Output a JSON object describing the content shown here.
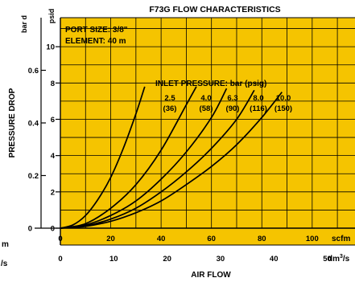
{
  "colors": {
    "plot_background": "#f5c400",
    "page_background": "#ffffff",
    "ink": "#000000"
  },
  "chart_data": {
    "type": "line",
    "title": "F73G FLOW CHARACTERISTICS",
    "notes": [
      "PORT SIZE: 3/8\"",
      "ELEMENT: 40 m"
    ],
    "legend_title": "INLET PRESSURE: bar (psig)",
    "ylabel": "PRESSURE DROP",
    "xlabel": "AIR FLOW",
    "grid": true,
    "y_axes": [
      {
        "unit": "psid",
        "range": [
          0,
          11.6
        ],
        "ticks": [
          0,
          2,
          4,
          6,
          8,
          10
        ]
      },
      {
        "unit": "bar d",
        "range": [
          0,
          0.8
        ],
        "ticks": [
          0.2,
          0.4,
          0.6
        ]
      }
    ],
    "x_axes": [
      {
        "unit": "scfm",
        "range": [
          0,
          117
        ],
        "ticks": [
          0,
          20,
          40,
          60,
          80,
          100
        ]
      },
      {
        "unit": "dm3/s",
        "range": [
          0,
          55.2
        ],
        "ticks": [
          0,
          10,
          20,
          30,
          40,
          50
        ]
      }
    ],
    "series": [
      {
        "name": "2.5 (36)",
        "pressure_bar": "2.5",
        "pressure_psig": "(36)",
        "x": [
          0,
          5,
          10,
          15,
          20,
          25,
          30,
          33.5
        ],
        "y": [
          0,
          0.18,
          0.7,
          1.6,
          2.8,
          4.4,
          6.3,
          7.8
        ]
      },
      {
        "name": "4.0 (58)",
        "pressure_bar": "4.0",
        "pressure_psig": "(58)",
        "x": [
          0,
          10,
          20,
          30,
          40,
          50,
          54
        ],
        "y": [
          0,
          0.25,
          1.1,
          2.4,
          4.3,
          6.8,
          7.8
        ]
      },
      {
        "name": "6.3 (90)",
        "pressure_bar": "6.3",
        "pressure_psig": "(90)",
        "x": [
          0,
          10,
          20,
          30,
          40,
          50,
          60,
          66
        ],
        "y": [
          0,
          0.18,
          0.7,
          1.5,
          2.7,
          4.2,
          6.1,
          7.7
        ]
      },
      {
        "name": "8.0 (116)",
        "pressure_bar": "8.0",
        "pressure_psig": "(116)",
        "x": [
          0,
          10,
          20,
          30,
          40,
          50,
          60,
          70,
          77
        ],
        "y": [
          0,
          0.13,
          0.5,
          1.1,
          2.0,
          3.1,
          4.4,
          6.0,
          7.6
        ]
      },
      {
        "name": "10.0 (150)",
        "pressure_bar": "10.0",
        "pressure_psig": "(150)",
        "x": [
          0,
          10,
          20,
          30,
          40,
          50,
          60,
          70,
          80,
          88
        ],
        "y": [
          0,
          0.1,
          0.38,
          0.85,
          1.5,
          2.4,
          3.4,
          4.6,
          6.1,
          7.5
        ]
      }
    ]
  },
  "edge_fragments": {
    "left_unit_1": "m",
    "left_unit_2": "/s"
  }
}
